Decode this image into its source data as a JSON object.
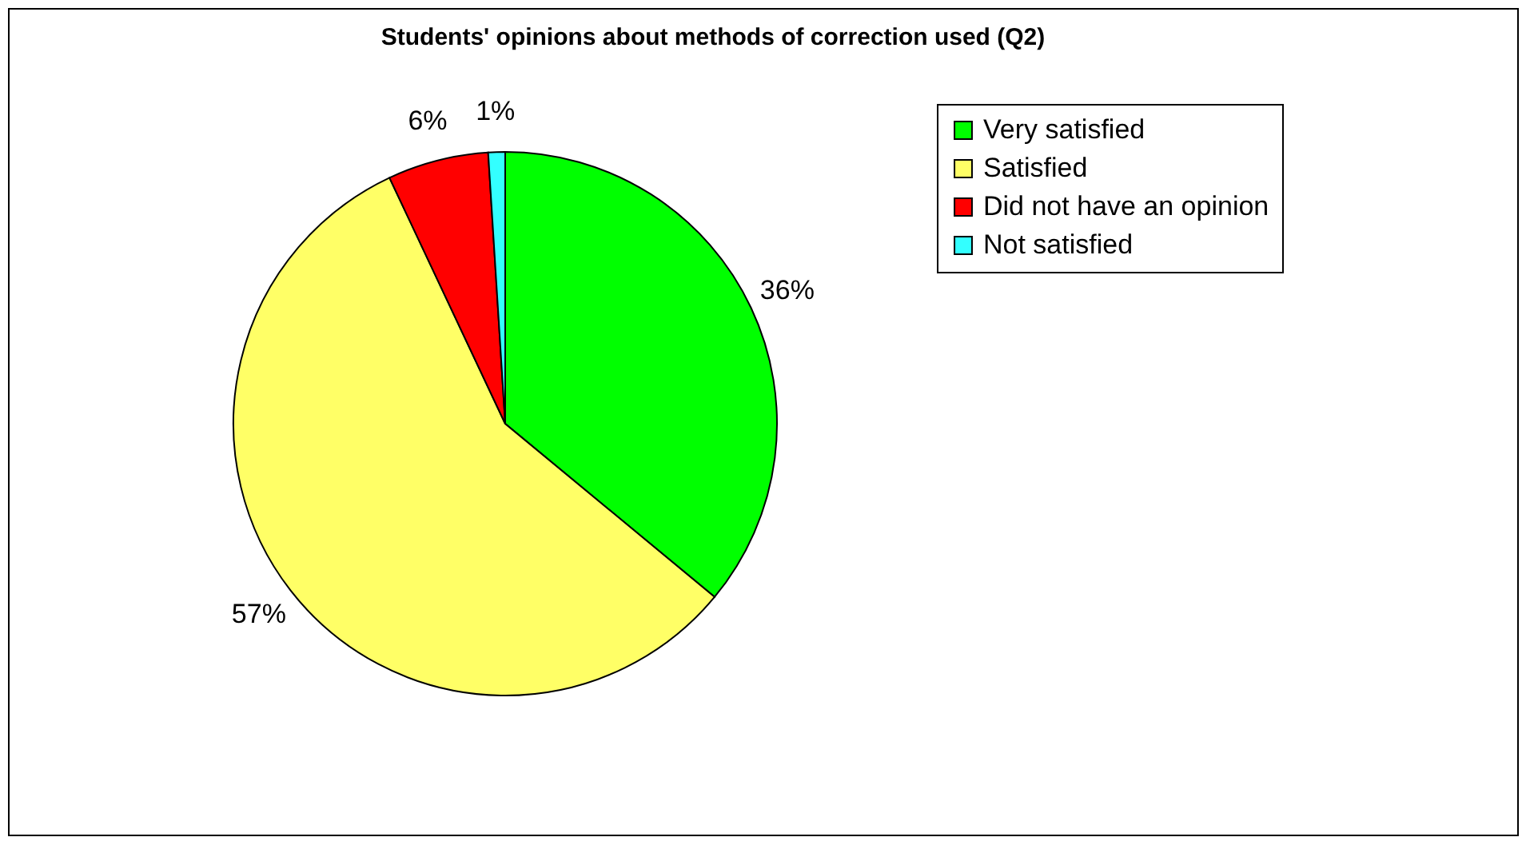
{
  "chart_data": {
    "type": "pie",
    "title": "Students' opinions about methods of correction used (Q2)",
    "categories": [
      "Very satisfied",
      "Satisfied",
      "Did not have an opinion",
      "Not satisfied"
    ],
    "values": [
      36,
      57,
      6,
      1
    ],
    "colors": [
      "#00ff00",
      "#ffff66",
      "#ff0000",
      "#33ffff"
    ],
    "value_labels": [
      "36%",
      "57%",
      "6%",
      "1%"
    ],
    "legend": "right"
  }
}
